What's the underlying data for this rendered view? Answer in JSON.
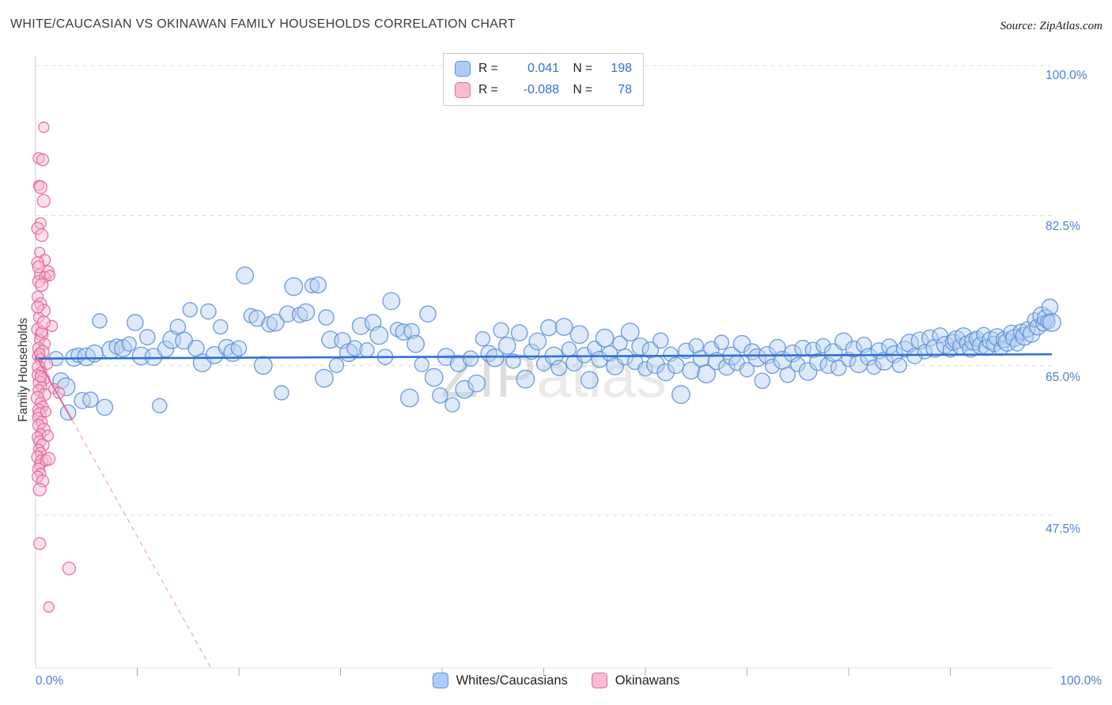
{
  "header": {
    "title": "WHITE/CAUCASIAN VS OKINAWAN FAMILY HOUSEHOLDS CORRELATION CHART",
    "source": "Source: ZipAtlas.com"
  },
  "legend_box": {
    "rows": [
      {
        "series": "Whites/Caucasians",
        "r_label": "R =",
        "r_value": "0.041",
        "n_label": "N =",
        "n_value": "198"
      },
      {
        "series": "Okinawans",
        "r_label": "R =",
        "r_value": "-0.088",
        "n_label": "N =",
        "n_value": "78"
      }
    ]
  },
  "bottom_legend": {
    "items": [
      {
        "label": "Whites/Caucasians",
        "color": "blue"
      },
      {
        "label": "Okinawans",
        "color": "pink"
      }
    ]
  },
  "chart_data": {
    "type": "scatter",
    "title": "WHITE/CAUCASIAN VS OKINAWAN FAMILY HOUSEHOLDS CORRELATION CHART",
    "xlabel": "",
    "ylabel": "Family Households",
    "watermark": {
      "part1": "ZIP",
      "part2": "atlas"
    },
    "x_axis": {
      "min": 0,
      "max": 100,
      "left_label": "0.0%",
      "right_label": "100.0%",
      "tick_step_percent": 10
    },
    "y_axis": {
      "ticks": [
        100.0,
        82.5,
        65.0,
        47.5
      ],
      "tick_labels": [
        "100.0%",
        "82.5%",
        "65.0%",
        "47.5%"
      ],
      "unit": "%"
    },
    "grid": "horizontal-dashed",
    "legend_position": "top-center",
    "series": [
      {
        "key": "whites",
        "name": "Whites/Caucasians",
        "R": 0.041,
        "N": 198,
        "fill": "#b5d0f5",
        "stroke": "#5a8fd8",
        "points": [
          [
            2.0,
            65.8
          ],
          [
            2.5,
            63.2
          ],
          [
            3.0,
            62.5
          ],
          [
            3.2,
            59.5
          ],
          [
            3.8,
            65.9
          ],
          [
            4.2,
            66.2
          ],
          [
            4.6,
            60.9
          ],
          [
            5.0,
            66.0
          ],
          [
            5.4,
            61.0
          ],
          [
            5.8,
            66.4
          ],
          [
            6.3,
            70.2
          ],
          [
            6.8,
            60.1
          ],
          [
            7.4,
            66.8
          ],
          [
            8.0,
            67.2
          ],
          [
            8.6,
            67.0
          ],
          [
            9.2,
            67.5
          ],
          [
            9.8,
            70.0
          ],
          [
            10.4,
            66.1
          ],
          [
            11.0,
            68.3
          ],
          [
            11.6,
            66.0
          ],
          [
            12.2,
            60.3
          ],
          [
            12.8,
            66.9
          ],
          [
            13.4,
            68.0
          ],
          [
            14.0,
            69.5
          ],
          [
            14.6,
            67.9
          ],
          [
            15.2,
            71.5
          ],
          [
            15.8,
            67.0
          ],
          [
            16.4,
            65.3
          ],
          [
            17.0,
            71.3
          ],
          [
            17.6,
            66.2
          ],
          [
            18.2,
            69.5
          ],
          [
            18.8,
            67.1
          ],
          [
            19.4,
            66.5
          ],
          [
            20.0,
            67.0
          ],
          [
            20.6,
            75.5
          ],
          [
            21.2,
            70.8
          ],
          [
            21.8,
            70.5
          ],
          [
            22.4,
            65.0
          ],
          [
            23.0,
            69.8
          ],
          [
            23.6,
            70.0
          ],
          [
            24.2,
            61.8
          ],
          [
            24.8,
            71.0
          ],
          [
            25.4,
            74.2
          ],
          [
            26.0,
            70.9
          ],
          [
            26.6,
            71.2
          ],
          [
            27.2,
            74.3
          ],
          [
            27.8,
            74.4
          ],
          [
            28.4,
            63.5
          ],
          [
            28.6,
            70.6
          ],
          [
            29.0,
            68.0
          ],
          [
            29.6,
            65.0
          ],
          [
            30.2,
            67.9
          ],
          [
            30.8,
            66.5
          ],
          [
            31.4,
            67.0
          ],
          [
            32.0,
            69.6
          ],
          [
            32.6,
            66.8
          ],
          [
            33.2,
            70.0
          ],
          [
            33.8,
            68.5
          ],
          [
            34.4,
            66.0
          ],
          [
            35.0,
            72.5
          ],
          [
            35.6,
            69.2
          ],
          [
            36.2,
            68.9
          ],
          [
            36.8,
            61.2
          ],
          [
            37.0,
            69.0
          ],
          [
            37.4,
            67.5
          ],
          [
            38.0,
            65.1
          ],
          [
            38.6,
            71.0
          ],
          [
            39.2,
            63.6
          ],
          [
            39.8,
            61.5
          ],
          [
            40.4,
            66.0
          ],
          [
            41.0,
            60.4
          ],
          [
            41.6,
            65.2
          ],
          [
            42.2,
            62.2
          ],
          [
            42.8,
            65.8
          ],
          [
            43.4,
            62.9
          ],
          [
            44.0,
            68.1
          ],
          [
            44.6,
            66.4
          ],
          [
            45.2,
            65.9
          ],
          [
            45.8,
            69.1
          ],
          [
            46.4,
            67.3
          ],
          [
            47.0,
            65.5
          ],
          [
            47.6,
            68.8
          ],
          [
            48.2,
            63.4
          ],
          [
            48.8,
            66.6
          ],
          [
            49.4,
            67.8
          ],
          [
            50.0,
            65.2
          ],
          [
            50.5,
            69.4
          ],
          [
            51.0,
            66.1
          ],
          [
            51.5,
            64.7
          ],
          [
            52.0,
            69.5
          ],
          [
            52.5,
            66.9
          ],
          [
            53.0,
            65.3
          ],
          [
            53.5,
            68.6
          ],
          [
            54.0,
            66.2
          ],
          [
            54.5,
            63.3
          ],
          [
            55.0,
            67.0
          ],
          [
            55.5,
            65.7
          ],
          [
            56.0,
            68.2
          ],
          [
            56.5,
            66.4
          ],
          [
            57.0,
            64.9
          ],
          [
            57.5,
            67.6
          ],
          [
            58.0,
            66.0
          ],
          [
            58.5,
            68.9
          ],
          [
            59.0,
            65.4
          ],
          [
            59.5,
            67.2
          ],
          [
            60.0,
            64.6
          ],
          [
            60.5,
            66.8
          ],
          [
            61.0,
            65.1
          ],
          [
            61.5,
            67.9
          ],
          [
            62.0,
            64.2
          ],
          [
            62.5,
            66.3
          ],
          [
            63.0,
            65.0
          ],
          [
            63.5,
            61.6
          ],
          [
            64.0,
            66.7
          ],
          [
            64.5,
            64.4
          ],
          [
            65.0,
            67.3
          ],
          [
            65.5,
            65.8
          ],
          [
            66.0,
            64.0
          ],
          [
            66.5,
            66.9
          ],
          [
            67.0,
            65.5
          ],
          [
            67.5,
            67.7
          ],
          [
            68.0,
            64.8
          ],
          [
            68.5,
            66.1
          ],
          [
            69.0,
            65.3
          ],
          [
            69.5,
            67.5
          ],
          [
            70.0,
            64.5
          ],
          [
            70.5,
            66.6
          ],
          [
            71.0,
            65.9
          ],
          [
            71.5,
            63.2
          ],
          [
            72.0,
            66.2
          ],
          [
            72.5,
            64.9
          ],
          [
            73.0,
            67.1
          ],
          [
            73.5,
            65.6
          ],
          [
            74.0,
            63.9
          ],
          [
            74.5,
            66.4
          ],
          [
            75.0,
            65.1
          ],
          [
            75.5,
            67.0
          ],
          [
            76.0,
            64.3
          ],
          [
            76.5,
            66.8
          ],
          [
            77.0,
            65.4
          ],
          [
            77.5,
            67.3
          ],
          [
            78.0,
            65.0
          ],
          [
            78.5,
            66.5
          ],
          [
            79.0,
            64.7
          ],
          [
            79.5,
            67.8
          ],
          [
            80.0,
            65.7
          ],
          [
            80.5,
            66.9
          ],
          [
            81.0,
            65.2
          ],
          [
            81.5,
            67.4
          ],
          [
            82.0,
            66.0
          ],
          [
            82.5,
            64.8
          ],
          [
            83.0,
            66.7
          ],
          [
            83.5,
            65.5
          ],
          [
            84.0,
            67.2
          ],
          [
            84.5,
            66.3
          ],
          [
            85.0,
            65.0
          ],
          [
            85.5,
            66.9
          ],
          [
            86.0,
            67.6
          ],
          [
            86.5,
            66.1
          ],
          [
            87.0,
            67.9
          ],
          [
            87.5,
            66.6
          ],
          [
            88.0,
            68.2
          ],
          [
            88.5,
            67.0
          ],
          [
            89.0,
            68.5
          ],
          [
            89.5,
            67.4
          ],
          [
            90.0,
            66.8
          ],
          [
            90.3,
            67.7
          ],
          [
            90.6,
            68.0
          ],
          [
            91.0,
            67.2
          ],
          [
            91.3,
            68.4
          ],
          [
            91.6,
            67.6
          ],
          [
            92.0,
            66.9
          ],
          [
            92.3,
            67.8
          ],
          [
            92.6,
            68.1
          ],
          [
            93.0,
            67.3
          ],
          [
            93.3,
            68.6
          ],
          [
            93.6,
            67.1
          ],
          [
            94.0,
            67.9
          ],
          [
            94.3,
            67.5
          ],
          [
            94.6,
            68.3
          ],
          [
            95.0,
            67.0
          ],
          [
            95.3,
            68.0
          ],
          [
            95.6,
            67.7
          ],
          [
            96.0,
            68.8
          ],
          [
            96.3,
            68.2
          ],
          [
            96.6,
            67.5
          ],
          [
            97.0,
            68.9
          ],
          [
            97.3,
            68.4
          ],
          [
            97.6,
            69.2
          ],
          [
            98.0,
            68.7
          ],
          [
            98.3,
            70.3
          ],
          [
            98.6,
            69.5
          ],
          [
            99.0,
            70.8
          ],
          [
            99.2,
            69.9
          ],
          [
            99.4,
            70.5
          ],
          [
            99.6,
            70.1
          ],
          [
            99.8,
            71.8
          ],
          [
            100.0,
            70.0
          ]
        ]
      },
      {
        "key": "okinawans",
        "name": "Okinawans",
        "R": -0.088,
        "N": 78,
        "fill": "#f9bcd3",
        "stroke": "#e2679b",
        "points": [
          [
            0.8,
            92.8
          ],
          [
            0.3,
            89.2
          ],
          [
            0.7,
            89.0
          ],
          [
            0.8,
            84.2
          ],
          [
            0.3,
            86.0
          ],
          [
            0.5,
            81.6
          ],
          [
            0.2,
            81.0
          ],
          [
            0.6,
            80.2
          ],
          [
            0.4,
            78.2
          ],
          [
            0.9,
            77.3
          ],
          [
            0.2,
            77.0
          ],
          [
            1.2,
            75.9
          ],
          [
            0.4,
            75.6
          ],
          [
            0.9,
            75.3
          ],
          [
            0.3,
            74.8
          ],
          [
            0.6,
            74.4
          ],
          [
            1.4,
            75.5
          ],
          [
            0.2,
            73.0
          ],
          [
            0.5,
            72.2
          ],
          [
            0.8,
            71.4
          ],
          [
            0.3,
            70.6
          ],
          [
            1.6,
            69.6
          ],
          [
            0.2,
            69.2
          ],
          [
            0.6,
            68.6
          ],
          [
            0.4,
            68.0
          ],
          [
            0.9,
            67.5
          ],
          [
            0.3,
            67.0
          ],
          [
            0.7,
            66.6
          ],
          [
            0.2,
            66.1
          ],
          [
            0.5,
            65.7
          ],
          [
            1.1,
            65.2
          ],
          [
            0.3,
            64.8
          ],
          [
            0.6,
            64.3
          ],
          [
            0.2,
            63.9
          ],
          [
            0.8,
            63.4
          ],
          [
            0.4,
            63.0
          ],
          [
            0.6,
            62.5
          ],
          [
            0.3,
            62.1
          ],
          [
            0.9,
            61.6
          ],
          [
            0.2,
            61.2
          ],
          [
            0.5,
            60.7
          ],
          [
            0.7,
            60.2
          ],
          [
            0.3,
            59.8
          ],
          [
            0.4,
            59.3
          ],
          [
            0.2,
            58.9
          ],
          [
            0.6,
            58.4
          ],
          [
            0.3,
            58.0
          ],
          [
            0.8,
            57.5
          ],
          [
            0.5,
            57.0
          ],
          [
            0.2,
            56.6
          ],
          [
            0.4,
            56.1
          ],
          [
            0.7,
            55.7
          ],
          [
            0.3,
            55.2
          ],
          [
            0.5,
            54.8
          ],
          [
            0.2,
            54.3
          ],
          [
            0.6,
            53.8
          ],
          [
            0.4,
            53.4
          ],
          [
            1.0,
            53.9
          ],
          [
            0.3,
            52.9
          ],
          [
            1.3,
            54.1
          ],
          [
            0.5,
            52.4
          ],
          [
            0.2,
            52.0
          ],
          [
            0.7,
            51.5
          ],
          [
            0.4,
            50.5
          ],
          [
            1.8,
            62.3
          ],
          [
            2.3,
            61.8
          ],
          [
            0.3,
            76.5
          ],
          [
            0.5,
            85.8
          ],
          [
            1.0,
            59.6
          ],
          [
            1.2,
            56.8
          ],
          [
            0.4,
            44.2
          ],
          [
            3.3,
            41.3
          ],
          [
            1.3,
            36.8
          ],
          [
            0.6,
            68.9
          ],
          [
            0.2,
            71.8
          ],
          [
            0.8,
            70.0
          ],
          [
            0.4,
            66.4
          ],
          [
            0.5,
            63.7
          ]
        ]
      }
    ],
    "trend_lines": [
      {
        "series": "Whites/Caucasians",
        "style": "solid",
        "color": "#2e6fd6",
        "points": [
          [
            0,
            65.8
          ],
          [
            100,
            66.3
          ]
        ]
      },
      {
        "series": "Okinawans",
        "style": "solid",
        "color": "#e2679b",
        "points": [
          [
            0,
            66.2
          ],
          [
            3.6,
            58.6
          ]
        ]
      },
      {
        "series": "Okinawans",
        "style": "dashed",
        "color": "#f0aac5",
        "points": [
          [
            3.6,
            58.6
          ],
          [
            17.2,
            29.8
          ]
        ]
      }
    ]
  }
}
